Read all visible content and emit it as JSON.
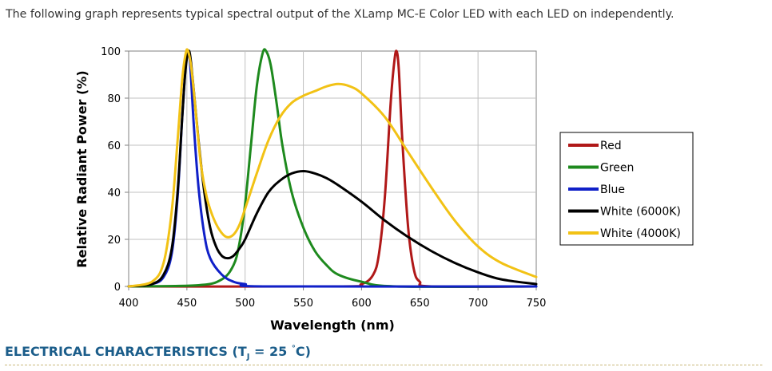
{
  "intro_text": "The following graph represents typical spectral output of the XLamp MC-E Color LED with each LED on independently.",
  "heading": {
    "prefix": "ELECTRICAL CHARACTERISTICS (T",
    "subscript": "J",
    "middle": " = 25 ",
    "degree": "°",
    "suffix": "C)"
  },
  "chart_data": {
    "type": "line",
    "title": "",
    "xlabel": "Wavelength (nm)",
    "ylabel": "Relative Radiant Power (%)",
    "xlim": [
      400,
      750
    ],
    "ylim": [
      0,
      100
    ],
    "xticks": [
      400,
      450,
      500,
      550,
      600,
      650,
      700,
      750
    ],
    "yticks": [
      0,
      20,
      40,
      60,
      80,
      100
    ],
    "grid": true,
    "legend_position": "right",
    "series": [
      {
        "name": "Red",
        "color": "#b01818",
        "x": [
          400,
          580,
          600,
          610,
          615,
          620,
          625,
          628,
          630,
          632,
          635,
          640,
          645,
          650,
          660,
          750
        ],
        "y": [
          0,
          0,
          1,
          5,
          14,
          38,
          78,
          95,
          100,
          92,
          62,
          25,
          7,
          2,
          0,
          0
        ]
      },
      {
        "name": "Green",
        "color": "#1e8a1e",
        "x": [
          400,
          460,
          480,
          490,
          495,
          500,
          505,
          510,
          515,
          518,
          522,
          527,
          532,
          540,
          550,
          560,
          570,
          580,
          600,
          630,
          750
        ],
        "y": [
          0,
          0.5,
          3,
          9,
          18,
          35,
          60,
          85,
          99,
          100,
          94,
          78,
          60,
          40,
          25,
          15,
          9,
          5,
          2,
          0,
          0
        ]
      },
      {
        "name": "Blue",
        "color": "#1020c8",
        "x": [
          400,
          420,
          430,
          437,
          442,
          446,
          449,
          451,
          453,
          456,
          460,
          465,
          470,
          480,
          490,
          500,
          520,
          750
        ],
        "y": [
          0,
          1,
          4,
          14,
          38,
          72,
          94,
          100,
          93,
          68,
          42,
          22,
          12,
          5,
          2,
          1,
          0,
          0
        ]
      },
      {
        "name": "White (6000K)",
        "color": "#000000",
        "x": [
          400,
          420,
          430,
          437,
          442,
          446,
          449,
          452,
          455,
          460,
          465,
          470,
          475,
          480,
          485,
          490,
          495,
          500,
          510,
          520,
          530,
          540,
          550,
          560,
          570,
          580,
          600,
          620,
          640,
          660,
          680,
          700,
          720,
          750
        ],
        "y": [
          0,
          1,
          5,
          16,
          40,
          72,
          93,
          100,
          88,
          62,
          40,
          25,
          17,
          13,
          12,
          13,
          16,
          20,
          31,
          40,
          45,
          48,
          49,
          48,
          46,
          43,
          36,
          28,
          21,
          15,
          10,
          6,
          3,
          1
        ]
      },
      {
        "name": "White (4000K)",
        "color": "#f2c215",
        "x": [
          400,
          420,
          430,
          437,
          442,
          446,
          449,
          451,
          454,
          458,
          462,
          467,
          472,
          478,
          484,
          490,
          495,
          500,
          510,
          520,
          530,
          540,
          550,
          560,
          570,
          580,
          590,
          600,
          620,
          640,
          660,
          680,
          700,
          720,
          750
        ],
        "y": [
          0,
          2,
          10,
          32,
          62,
          88,
          99,
          100,
          92,
          72,
          52,
          38,
          30,
          24,
          21,
          22,
          26,
          33,
          48,
          62,
          72,
          78,
          81,
          83,
          85,
          86,
          85,
          82,
          72,
          57,
          42,
          28,
          17,
          10,
          4
        ]
      }
    ]
  }
}
